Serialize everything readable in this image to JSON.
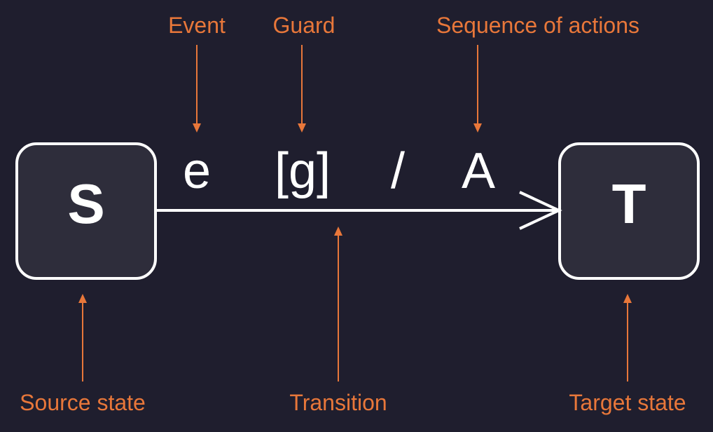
{
  "colors": {
    "background": "#1f1e2e",
    "state_fill": "#2e2d3b",
    "state_stroke": "#ffffff",
    "annotation": "#e8773a",
    "text": "#ffffff"
  },
  "states": {
    "source": {
      "letter": "S"
    },
    "target": {
      "letter": "T"
    }
  },
  "transition": {
    "event": "e",
    "guard": "[g]",
    "separator": "/",
    "actions": "A"
  },
  "annotations": {
    "event": "Event",
    "guard": "Guard",
    "actions": "Sequence of actions",
    "source": "Source state",
    "transition": "Transition",
    "target": "Target state"
  }
}
